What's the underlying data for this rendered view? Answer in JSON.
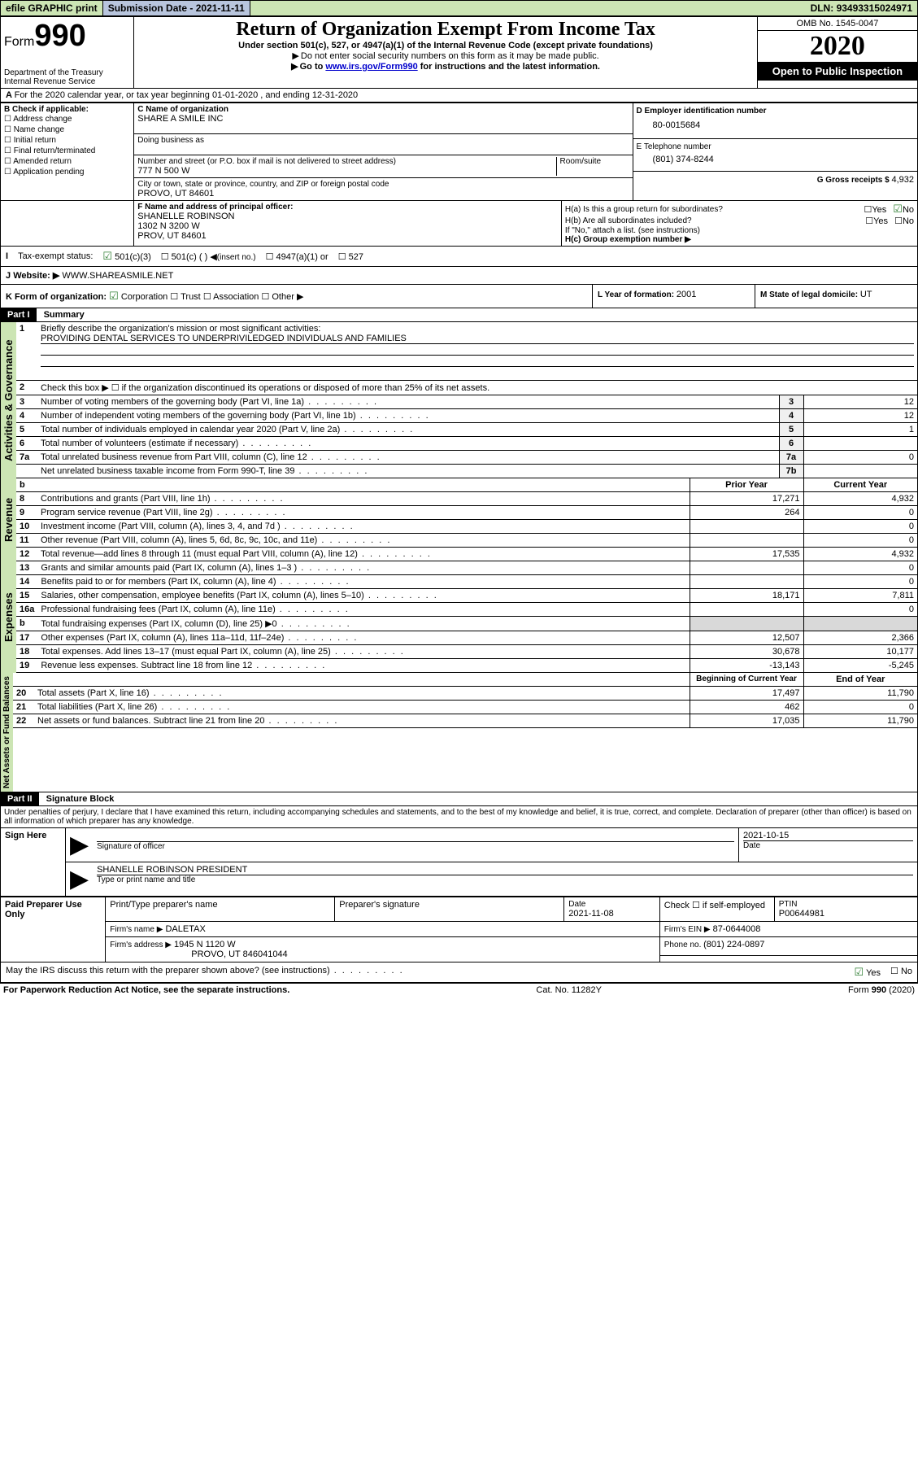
{
  "topbar": {
    "efile": "efile GRAPHIC print",
    "subdate_label": "Submission Date - ",
    "subdate": "2021-11-11",
    "dln_label": "DLN: ",
    "dln": "93493315024971"
  },
  "header": {
    "form_prefix": "Form",
    "form_num": "990",
    "dept": "Department of the Treasury\nInternal Revenue Service",
    "title": "Return of Organization Exempt From Income Tax",
    "subtitle": "Under section 501(c), 527, or 4947(a)(1) of the Internal Revenue Code (except private foundations)",
    "note1": "Do not enter social security numbers on this form as it may be made public.",
    "note2_pre": "Go to ",
    "note2_link": "www.irs.gov/Form990",
    "note2_post": " for instructions and the latest information.",
    "omb": "OMB No. 1545-0047",
    "year": "2020",
    "open": "Open to Public Inspection"
  },
  "lineA": "For the 2020 calendar year, or tax year beginning 01-01-2020    , and ending 12-31-2020",
  "boxB": {
    "title": "B Check if applicable:",
    "items": [
      "Address change",
      "Name change",
      "Initial return",
      "Final return/terminated",
      "Amended return",
      "Application pending"
    ]
  },
  "boxC": {
    "name_label": "C Name of organization",
    "name": "SHARE A SMILE INC",
    "dba_label": "Doing business as",
    "street_label": "Number and street (or P.O. box if mail is not delivered to street address)",
    "room_label": "Room/suite",
    "street": "777 N 500 W",
    "city_label": "City or town, state or province, country, and ZIP or foreign postal code",
    "city": "PROVO, UT  84601"
  },
  "boxD": {
    "label": "D Employer identification number",
    "value": "80-0015684"
  },
  "boxE": {
    "label": "E Telephone number",
    "value": "(801) 374-8244"
  },
  "boxG": {
    "label": "G Gross receipts $ ",
    "value": "4,932"
  },
  "boxF": {
    "label": "F Name and address of principal officer:",
    "name": "SHANELLE ROBINSON",
    "addr1": "1302 N 3200 W",
    "addr2": "PROV, UT  84601"
  },
  "boxH": {
    "a_label": "H(a)  Is this a group return for subordinates?",
    "a_yes": "Yes",
    "a_no": "No",
    "b_label": "H(b)  Are all subordinates included?",
    "b_yes": "Yes",
    "b_no": "No",
    "b_note": "If \"No,\" attach a list. (see instructions)",
    "c_label": "H(c)  Group exemption number ▶"
  },
  "boxI": {
    "label": "Tax-exempt status:",
    "o1": "501(c)(3)",
    "o2": "501(c) (  )",
    "o2b": "(insert no.)",
    "o3": "4947(a)(1) or",
    "o4": "527"
  },
  "boxJ": {
    "label": "Website: ▶",
    "value": "WWW.SHAREASMILE.NET"
  },
  "boxK": {
    "label": "K Form of organization:",
    "o1": "Corporation",
    "o2": "Trust",
    "o3": "Association",
    "o4": "Other ▶"
  },
  "boxL": {
    "label": "L Year of formation: ",
    "value": "2001"
  },
  "boxM": {
    "label": "M State of legal domicile: ",
    "value": "UT"
  },
  "part1": {
    "header": "Part I",
    "title": "Summary",
    "vert1": "Activities & Governance",
    "vert2": "Revenue",
    "vert3": "Expenses",
    "vert4": "Net Assets or Fund Balances",
    "line1_label": "Briefly describe the organization's mission or most significant activities:",
    "line1_text": "PROVIDING DENTAL SERVICES TO UNDERPRIVILEDGED INDIVIDUALS AND FAMILIES",
    "line2": "Check this box ▶ ☐  if the organization discontinued its operations or disposed of more than 25% of its net assets.",
    "col_prior": "Prior Year",
    "col_current": "Current Year",
    "col_begin": "Beginning of Current Year",
    "col_end": "End of Year",
    "lines_gov": [
      {
        "n": "3",
        "t": "Number of voting members of the governing body (Part VI, line 1a)",
        "lbl": "3",
        "v": "12"
      },
      {
        "n": "4",
        "t": "Number of independent voting members of the governing body (Part VI, line 1b)",
        "lbl": "4",
        "v": "12"
      },
      {
        "n": "5",
        "t": "Total number of individuals employed in calendar year 2020 (Part V, line 2a)",
        "lbl": "5",
        "v": "1"
      },
      {
        "n": "6",
        "t": "Total number of volunteers (estimate if necessary)",
        "lbl": "6",
        "v": ""
      },
      {
        "n": "7a",
        "t": "Total unrelated business revenue from Part VIII, column (C), line 12",
        "lbl": "7a",
        "v": "0"
      },
      {
        "n": "",
        "t": "Net unrelated business taxable income from Form 990-T, line 39",
        "lbl": "7b",
        "v": ""
      }
    ],
    "lines_rev": [
      {
        "n": "8",
        "t": "Contributions and grants (Part VIII, line 1h)",
        "p": "17,271",
        "c": "4,932"
      },
      {
        "n": "9",
        "t": "Program service revenue (Part VIII, line 2g)",
        "p": "264",
        "c": "0"
      },
      {
        "n": "10",
        "t": "Investment income (Part VIII, column (A), lines 3, 4, and 7d )",
        "p": "",
        "c": "0"
      },
      {
        "n": "11",
        "t": "Other revenue (Part VIII, column (A), lines 5, 6d, 8c, 9c, 10c, and 11e)",
        "p": "",
        "c": "0"
      },
      {
        "n": "12",
        "t": "Total revenue—add lines 8 through 11 (must equal Part VIII, column (A), line 12)",
        "p": "17,535",
        "c": "4,932"
      }
    ],
    "lines_exp": [
      {
        "n": "13",
        "t": "Grants and similar amounts paid (Part IX, column (A), lines 1–3 )",
        "p": "",
        "c": "0"
      },
      {
        "n": "14",
        "t": "Benefits paid to or for members (Part IX, column (A), line 4)",
        "p": "",
        "c": "0"
      },
      {
        "n": "15",
        "t": "Salaries, other compensation, employee benefits (Part IX, column (A), lines 5–10)",
        "p": "18,171",
        "c": "7,811"
      },
      {
        "n": "16a",
        "t": "Professional fundraising fees (Part IX, column (A), line 11e)",
        "p": "",
        "c": "0"
      },
      {
        "n": "b",
        "t": "Total fundraising expenses (Part IX, column (D), line 25) ▶0",
        "p": "GREY",
        "c": "GREY"
      },
      {
        "n": "17",
        "t": "Other expenses (Part IX, column (A), lines 11a–11d, 11f–24e)",
        "p": "12,507",
        "c": "2,366"
      },
      {
        "n": "18",
        "t": "Total expenses. Add lines 13–17 (must equal Part IX, column (A), line 25)",
        "p": "30,678",
        "c": "10,177"
      },
      {
        "n": "19",
        "t": "Revenue less expenses. Subtract line 18 from line 12",
        "p": "-13,143",
        "c": "-5,245"
      }
    ],
    "lines_net": [
      {
        "n": "20",
        "t": "Total assets (Part X, line 16)",
        "p": "17,497",
        "c": "11,790"
      },
      {
        "n": "21",
        "t": "Total liabilities (Part X, line 26)",
        "p": "462",
        "c": "0"
      },
      {
        "n": "22",
        "t": "Net assets or fund balances. Subtract line 21 from line 20",
        "p": "17,035",
        "c": "11,790"
      }
    ]
  },
  "part2": {
    "header": "Part II",
    "title": "Signature Block",
    "perjury": "Under penalties of perjury, I declare that I have examined this return, including accompanying schedules and statements, and to the best of my knowledge and belief, it is true, correct, and complete. Declaration of preparer (other than officer) is based on all information of which preparer has any knowledge.",
    "sign_here": "Sign Here",
    "sig_officer": "Signature of officer",
    "sig_date": "2021-10-15",
    "date_label": "Date",
    "officer_name": "SHANELLE ROBINSON PRESIDENT",
    "officer_sub": "Type or print name and title",
    "paid": "Paid Preparer Use Only",
    "prep_name_label": "Print/Type preparer's name",
    "prep_sig_label": "Preparer's signature",
    "prep_date_label": "Date",
    "prep_date": "2021-11-08",
    "prep_check": "Check ☐ if self-employed",
    "ptin_label": "PTIN",
    "ptin": "P00644981",
    "firm_name_label": "Firm's name    ▶",
    "firm_name": "DALETAX",
    "firm_ein_label": "Firm's EIN ▶",
    "firm_ein": "87-0644008",
    "firm_addr_label": "Firm's address ▶",
    "firm_addr1": "1945 N 1120 W",
    "firm_addr2": "PROVO, UT  846041044",
    "phone_label": "Phone no. ",
    "phone": "(801) 224-0897",
    "irs_discuss": "May the IRS discuss this return with the preparer shown above? (see instructions)",
    "yes": "Yes",
    "no": "No"
  },
  "footer": {
    "paperwork": "For Paperwork Reduction Act Notice, see the separate instructions.",
    "cat": "Cat. No. 11282Y",
    "form": "Form 990 (2020)"
  }
}
